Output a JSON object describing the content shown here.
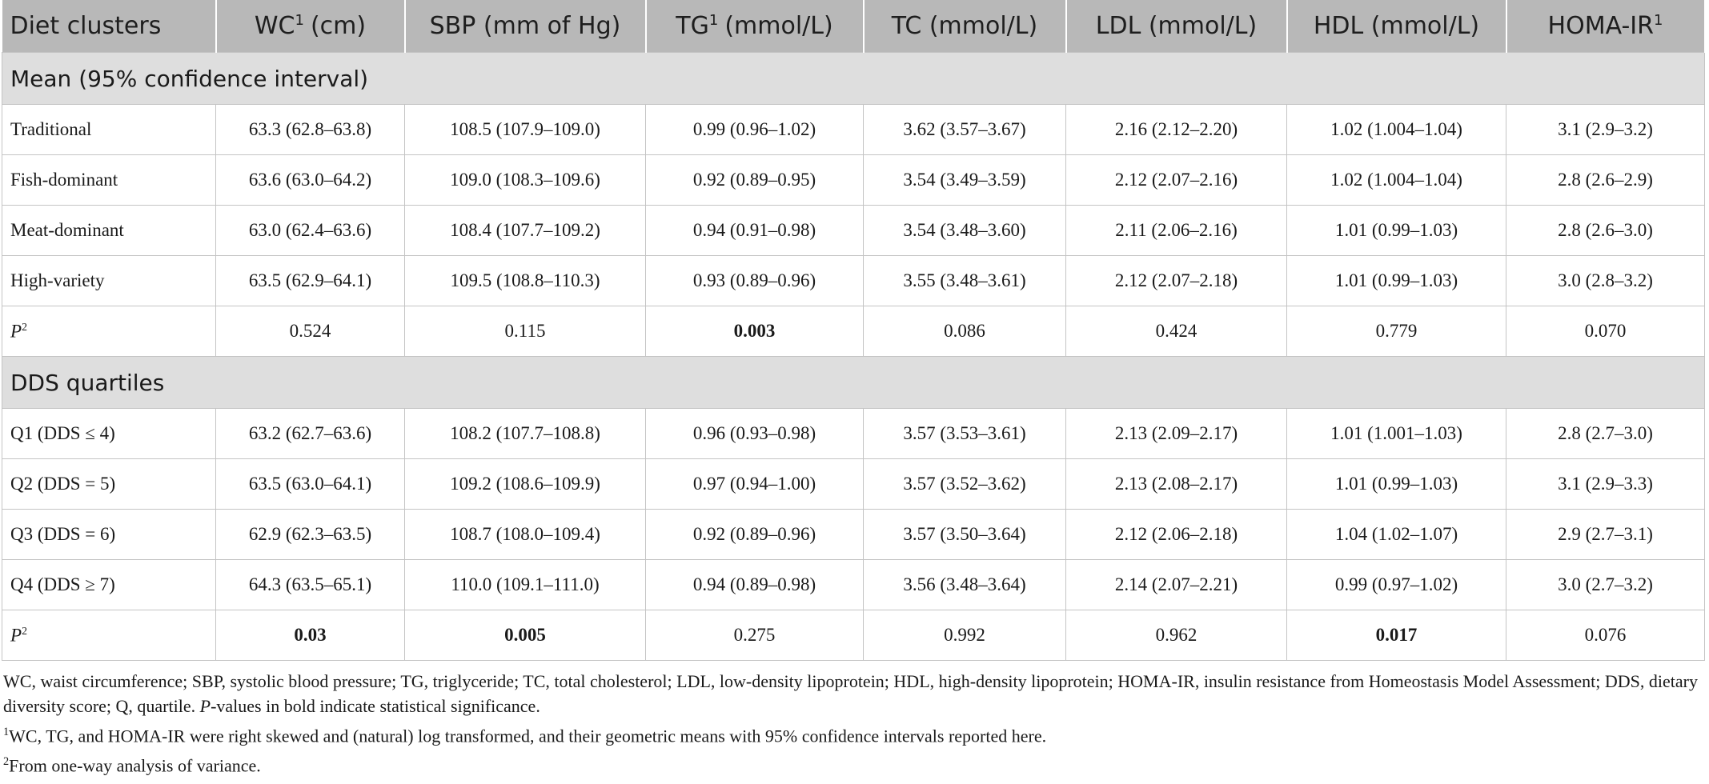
{
  "table": {
    "header": [
      {
        "label": "Diet clusters"
      },
      {
        "label": "WC",
        "sup": "1",
        "unit": "(cm)"
      },
      {
        "label": "SBP (mm of Hg)"
      },
      {
        "label": "TG",
        "sup": "1",
        "unit": "(mmol/L)"
      },
      {
        "label": "TC (mmol/L)"
      },
      {
        "label": "LDL (mmol/L)"
      },
      {
        "label": "HDL (mmol/L)"
      },
      {
        "label": "HOMA-IR",
        "sup": "1"
      }
    ],
    "sections": [
      {
        "title": "Mean (95% confidence interval)",
        "rows": [
          {
            "label": "Traditional",
            "cells": [
              "63.3 (62.8–63.8)",
              "108.5 (107.9–109.0)",
              "0.99 (0.96–1.02)",
              "3.62 (3.57–3.67)",
              "2.16 (2.12–2.20)",
              "1.02 (1.004–1.04)",
              "3.1 (2.9–3.2)"
            ]
          },
          {
            "label": "Fish-dominant",
            "cells": [
              "63.6 (63.0–64.2)",
              "109.0 (108.3–109.6)",
              "0.92 (0.89–0.95)",
              "3.54 (3.49–3.59)",
              "2.12 (2.07–2.16)",
              "1.02 (1.004–1.04)",
              "2.8 (2.6–2.9)"
            ]
          },
          {
            "label": "Meat-dominant",
            "cells": [
              "63.0 (62.4–63.6)",
              "108.4 (107.7–109.2)",
              "0.94 (0.91–0.98)",
              "3.54 (3.48–3.60)",
              "2.11 (2.06–2.16)",
              "1.01 (0.99–1.03)",
              "2.8 (2.6–3.0)"
            ]
          },
          {
            "label": "High-variety",
            "cells": [
              "63.5 (62.9–64.1)",
              "109.5 (108.8–110.3)",
              "0.93 (0.89–0.96)",
              "3.55 (3.48–3.61)",
              "2.12 (2.07–2.18)",
              "1.01 (0.99–1.03)",
              "3.0 (2.8–3.2)"
            ]
          },
          {
            "label": "P",
            "label_sup": "2",
            "cells": [
              "0.524",
              "0.115",
              "0.003",
              "0.086",
              "0.424",
              "0.779",
              "0.070"
            ],
            "bold": [
              2
            ]
          }
        ]
      },
      {
        "title": "DDS quartiles",
        "rows": [
          {
            "label": "Q1 (DDS ≤ 4)",
            "cells": [
              "63.2 (62.7–63.6)",
              "108.2 (107.7–108.8)",
              "0.96 (0.93–0.98)",
              "3.57 (3.53–3.61)",
              "2.13 (2.09–2.17)",
              "1.01 (1.001–1.03)",
              "2.8 (2.7–3.0)"
            ]
          },
          {
            "label": "Q2 (DDS = 5)",
            "cells": [
              "63.5 (63.0–64.1)",
              "109.2 (108.6–109.9)",
              "0.97 (0.94–1.00)",
              "3.57 (3.52–3.62)",
              "2.13 (2.08–2.17)",
              "1.01 (0.99–1.03)",
              "3.1 (2.9–3.3)"
            ]
          },
          {
            "label": "Q3 (DDS = 6)",
            "cells": [
              "62.9 (62.3–63.5)",
              "108.7 (108.0–109.4)",
              "0.92 (0.89–0.96)",
              "3.57 (3.50–3.64)",
              "2.12 (2.06–2.18)",
              "1.04 (1.02–1.07)",
              "2.9 (2.7–3.1)"
            ]
          },
          {
            "label": "Q4 (DDS ≥ 7)",
            "cells": [
              "64.3 (63.5–65.1)",
              "110.0 (109.1–111.0)",
              "0.94 (0.89–0.98)",
              "3.56 (3.48–3.64)",
              "2.14 (2.07–2.21)",
              "0.99 (0.97–1.02)",
              "3.0 (2.7–3.2)"
            ]
          },
          {
            "label": "P",
            "label_sup": "2",
            "cells": [
              "0.03",
              "0.005",
              "0.275",
              "0.992",
              "0.962",
              "0.017",
              "0.076"
            ],
            "bold": [
              0,
              1,
              5
            ]
          }
        ]
      }
    ]
  },
  "notes": {
    "abbreviations": "WC, waist circumference; SBP, systolic blood pressure; TG, triglyceride; TC, total cholesterol; LDL, low-density lipoprotein; HDL, high-density lipoprotein; HOMA-IR, insulin resistance from Homeostasis Model Assessment; DDS, dietary diversity score; Q, quartile.",
    "significance_italic": "P",
    "significance_text": "-values in bold indicate statistical significance.",
    "footnotes": [
      {
        "mark": "1",
        "text": "WC, TG, and HOMA-IR were right skewed and (natural) log transformed, and their geometric means with 95% confidence intervals reported here."
      },
      {
        "mark": "2",
        "text": "From one-way analysis of variance."
      }
    ]
  }
}
